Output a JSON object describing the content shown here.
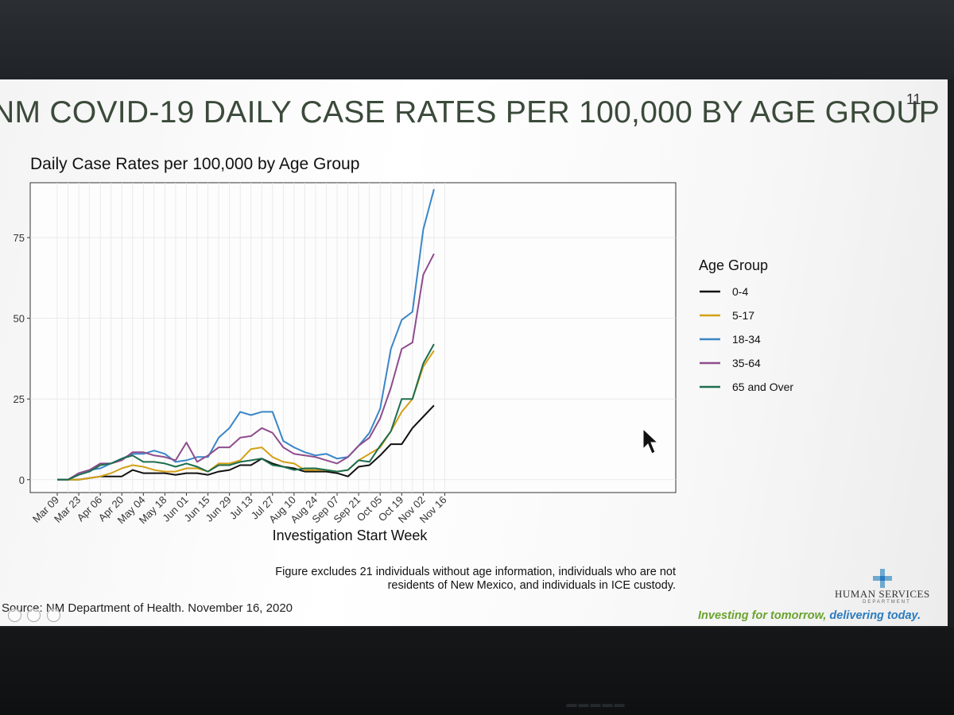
{
  "slide": {
    "title": "NM COVID-19 DAILY CASE RATES PER 100,000 BY AGE GROUP",
    "number": "11",
    "source": "Source: NM Department of Health. November 16, 2020",
    "footnote": "Figure excludes 21 individuals without age information, individuals who are not residents of New Mexico, and individuals in ICE custody.",
    "logo": {
      "name": "HUMAN SERVICES",
      "sub": "DEPARTMENT"
    },
    "tagline": {
      "part1": "Investing for tomorrow,",
      "part2": "delivering today."
    }
  },
  "chart_data": {
    "type": "line",
    "title": "Daily Case Rates per 100,000 by Age Group",
    "xlabel": "Investigation Start Week",
    "ylabel": "",
    "ylim": [
      -4,
      92
    ],
    "yticks": [
      0,
      25,
      50,
      75
    ],
    "grid": true,
    "legend_title": "Age Group",
    "legend_position": "right",
    "x_tick_labels": [
      "Mar 09",
      "Mar 23",
      "Apr 06",
      "Apr 20",
      "May 04",
      "May 18",
      "Jun 01",
      "Jun 15",
      "Jun 29",
      "Jul 13",
      "Jul 27",
      "Aug 10",
      "Aug 24",
      "Sep 07",
      "Sep 21",
      "Oct 05",
      "Oct 19",
      "Nov 02",
      "Nov 16"
    ],
    "x": [
      "Mar 09",
      "Mar 16",
      "Mar 23",
      "Mar 30",
      "Apr 06",
      "Apr 13",
      "Apr 20",
      "Apr 27",
      "May 04",
      "May 11",
      "May 18",
      "May 25",
      "Jun 01",
      "Jun 08",
      "Jun 15",
      "Jun 22",
      "Jun 29",
      "Jul 06",
      "Jul 13",
      "Jul 20",
      "Jul 27",
      "Aug 03",
      "Aug 10",
      "Aug 17",
      "Aug 24",
      "Aug 31",
      "Sep 07",
      "Sep 14",
      "Sep 21",
      "Sep 28",
      "Oct 05",
      "Oct 12",
      "Oct 19",
      "Oct 26",
      "Nov 02",
      "Nov 09"
    ],
    "series": [
      {
        "name": "0-4",
        "color": "#111111",
        "values": [
          0,
          0,
          0,
          0.5,
          1,
          1,
          1,
          3,
          2,
          2,
          2,
          1.5,
          2,
          2,
          1.5,
          2.5,
          3,
          4.5,
          4.5,
          6.5,
          5,
          4,
          3.5,
          2.5,
          2.5,
          2.5,
          2,
          1,
          4,
          4.5,
          7.5,
          11,
          11,
          16,
          19.5,
          23
        ]
      },
      {
        "name": "5-17",
        "color": "#d4a017",
        "values": [
          0,
          0,
          0,
          0.5,
          1,
          2,
          3.5,
          4.5,
          4,
          3,
          2.5,
          2.5,
          3.5,
          3.5,
          2.5,
          5,
          5,
          6,
          9.5,
          10,
          7,
          5.5,
          5,
          3,
          3,
          3,
          2.5,
          3,
          6,
          8,
          10,
          15,
          21,
          25,
          35,
          40
        ]
      },
      {
        "name": "18-34",
        "color": "#3a86c8",
        "values": [
          0,
          0,
          2,
          3,
          3.5,
          5,
          6.5,
          8,
          8,
          9,
          8,
          5.5,
          6,
          7,
          7,
          13,
          16,
          21,
          20,
          21,
          21,
          12,
          10,
          8.5,
          7.5,
          8,
          6.5,
          7,
          10.5,
          14.5,
          22,
          40.5,
          49.5,
          52,
          77.5,
          90
        ]
      },
      {
        "name": "35-64",
        "color": "#8e4d8e",
        "values": [
          0,
          0,
          2,
          3,
          5,
          5,
          6,
          8.5,
          8.5,
          7.5,
          7,
          6,
          11.5,
          5.5,
          7.5,
          10,
          10,
          13,
          13.5,
          16,
          14.5,
          10,
          8,
          7.5,
          7,
          6,
          5,
          7,
          10.5,
          13,
          19,
          28.5,
          40.5,
          42.5,
          63.5,
          70
        ]
      },
      {
        "name": "65 and Over",
        "color": "#1d6e4e",
        "values": [
          0,
          0,
          1.5,
          2.5,
          4.5,
          5,
          6.5,
          7.5,
          5.5,
          5.5,
          5,
          4,
          5,
          4,
          2.5,
          4.5,
          4.5,
          5.5,
          6,
          6.5,
          4.5,
          4,
          3,
          3.5,
          3.5,
          3,
          2.5,
          3,
          6,
          5.5,
          10.5,
          15,
          25,
          25,
          36,
          42
        ]
      }
    ]
  }
}
